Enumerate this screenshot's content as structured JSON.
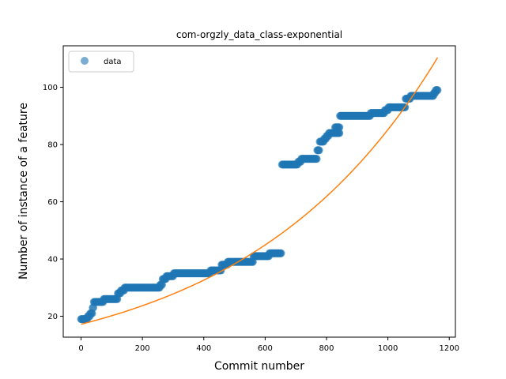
{
  "chart_data": {
    "type": "scatter",
    "title": "com-orgzly_data_class-exponential",
    "xlabel": "Commit number",
    "ylabel": "Number of instance of a feature",
    "xlim": [
      -58,
      1220
    ],
    "ylim": [
      12.7,
      114.5
    ],
    "xticks": [
      0,
      200,
      400,
      600,
      800,
      1000,
      1200
    ],
    "yticks": [
      20,
      40,
      60,
      80,
      100
    ],
    "grid": false,
    "legend": {
      "position": "top-left",
      "entries": [
        {
          "label": "data",
          "marker": "circle",
          "color": "#1f77b4"
        }
      ]
    },
    "colors": {
      "data": "#1f77b4",
      "fit": "#ff7f0e"
    },
    "series": [
      {
        "name": "data",
        "kind": "scatter",
        "segments": [
          {
            "x_start": 0,
            "x_end": 20,
            "y": 19
          },
          {
            "x_start": 22,
            "x_end": 28,
            "y": 20
          },
          {
            "x_start": 30,
            "x_end": 36,
            "y": 21
          },
          {
            "x_start": 38,
            "x_end": 40,
            "y": 23
          },
          {
            "x_start": 42,
            "x_end": 72,
            "y": 25
          },
          {
            "x_start": 74,
            "x_end": 118,
            "y": 26
          },
          {
            "x_start": 120,
            "x_end": 128,
            "y": 28
          },
          {
            "x_start": 130,
            "x_end": 140,
            "y": 29
          },
          {
            "x_start": 142,
            "x_end": 256,
            "y": 30
          },
          {
            "x_start": 258,
            "x_end": 264,
            "y": 31
          },
          {
            "x_start": 266,
            "x_end": 276,
            "y": 33
          },
          {
            "x_start": 278,
            "x_end": 300,
            "y": 34
          },
          {
            "x_start": 302,
            "x_end": 420,
            "y": 35
          },
          {
            "x_start": 422,
            "x_end": 456,
            "y": 36
          },
          {
            "x_start": 458,
            "x_end": 476,
            "y": 38
          },
          {
            "x_start": 478,
            "x_end": 560,
            "y": 39
          },
          {
            "x_start": 562,
            "x_end": 612,
            "y": 41
          },
          {
            "x_start": 614,
            "x_end": 652,
            "y": 42
          },
          {
            "x_start": 655,
            "x_end": 706,
            "y": 73
          },
          {
            "x_start": 708,
            "x_end": 716,
            "y": 74
          },
          {
            "x_start": 718,
            "x_end": 768,
            "y": 75
          },
          {
            "x_start": 770,
            "x_end": 776,
            "y": 78
          },
          {
            "x_start": 778,
            "x_end": 790,
            "y": 81
          },
          {
            "x_start": 792,
            "x_end": 798,
            "y": 82
          },
          {
            "x_start": 800,
            "x_end": 806,
            "y": 83
          },
          {
            "x_start": 808,
            "x_end": 842,
            "y": 84
          },
          {
            "x_start": 828,
            "x_end": 842,
            "y": 86
          },
          {
            "x_start": 844,
            "x_end": 942,
            "y": 90
          },
          {
            "x_start": 944,
            "x_end": 988,
            "y": 91
          },
          {
            "x_start": 990,
            "x_end": 1000,
            "y": 92
          },
          {
            "x_start": 1002,
            "x_end": 1056,
            "y": 93
          },
          {
            "x_start": 1058,
            "x_end": 1072,
            "y": 96
          },
          {
            "x_start": 1074,
            "x_end": 1148,
            "y": 97
          },
          {
            "x_start": 1150,
            "x_end": 1154,
            "y": 98
          },
          {
            "x_start": 1156,
            "x_end": 1162,
            "y": 99
          }
        ],
        "step": 2
      },
      {
        "name": "",
        "kind": "line",
        "model": "exponential",
        "a": 17.2,
        "b": 0.0016,
        "x_range": [
          0,
          1162
        ]
      }
    ]
  }
}
